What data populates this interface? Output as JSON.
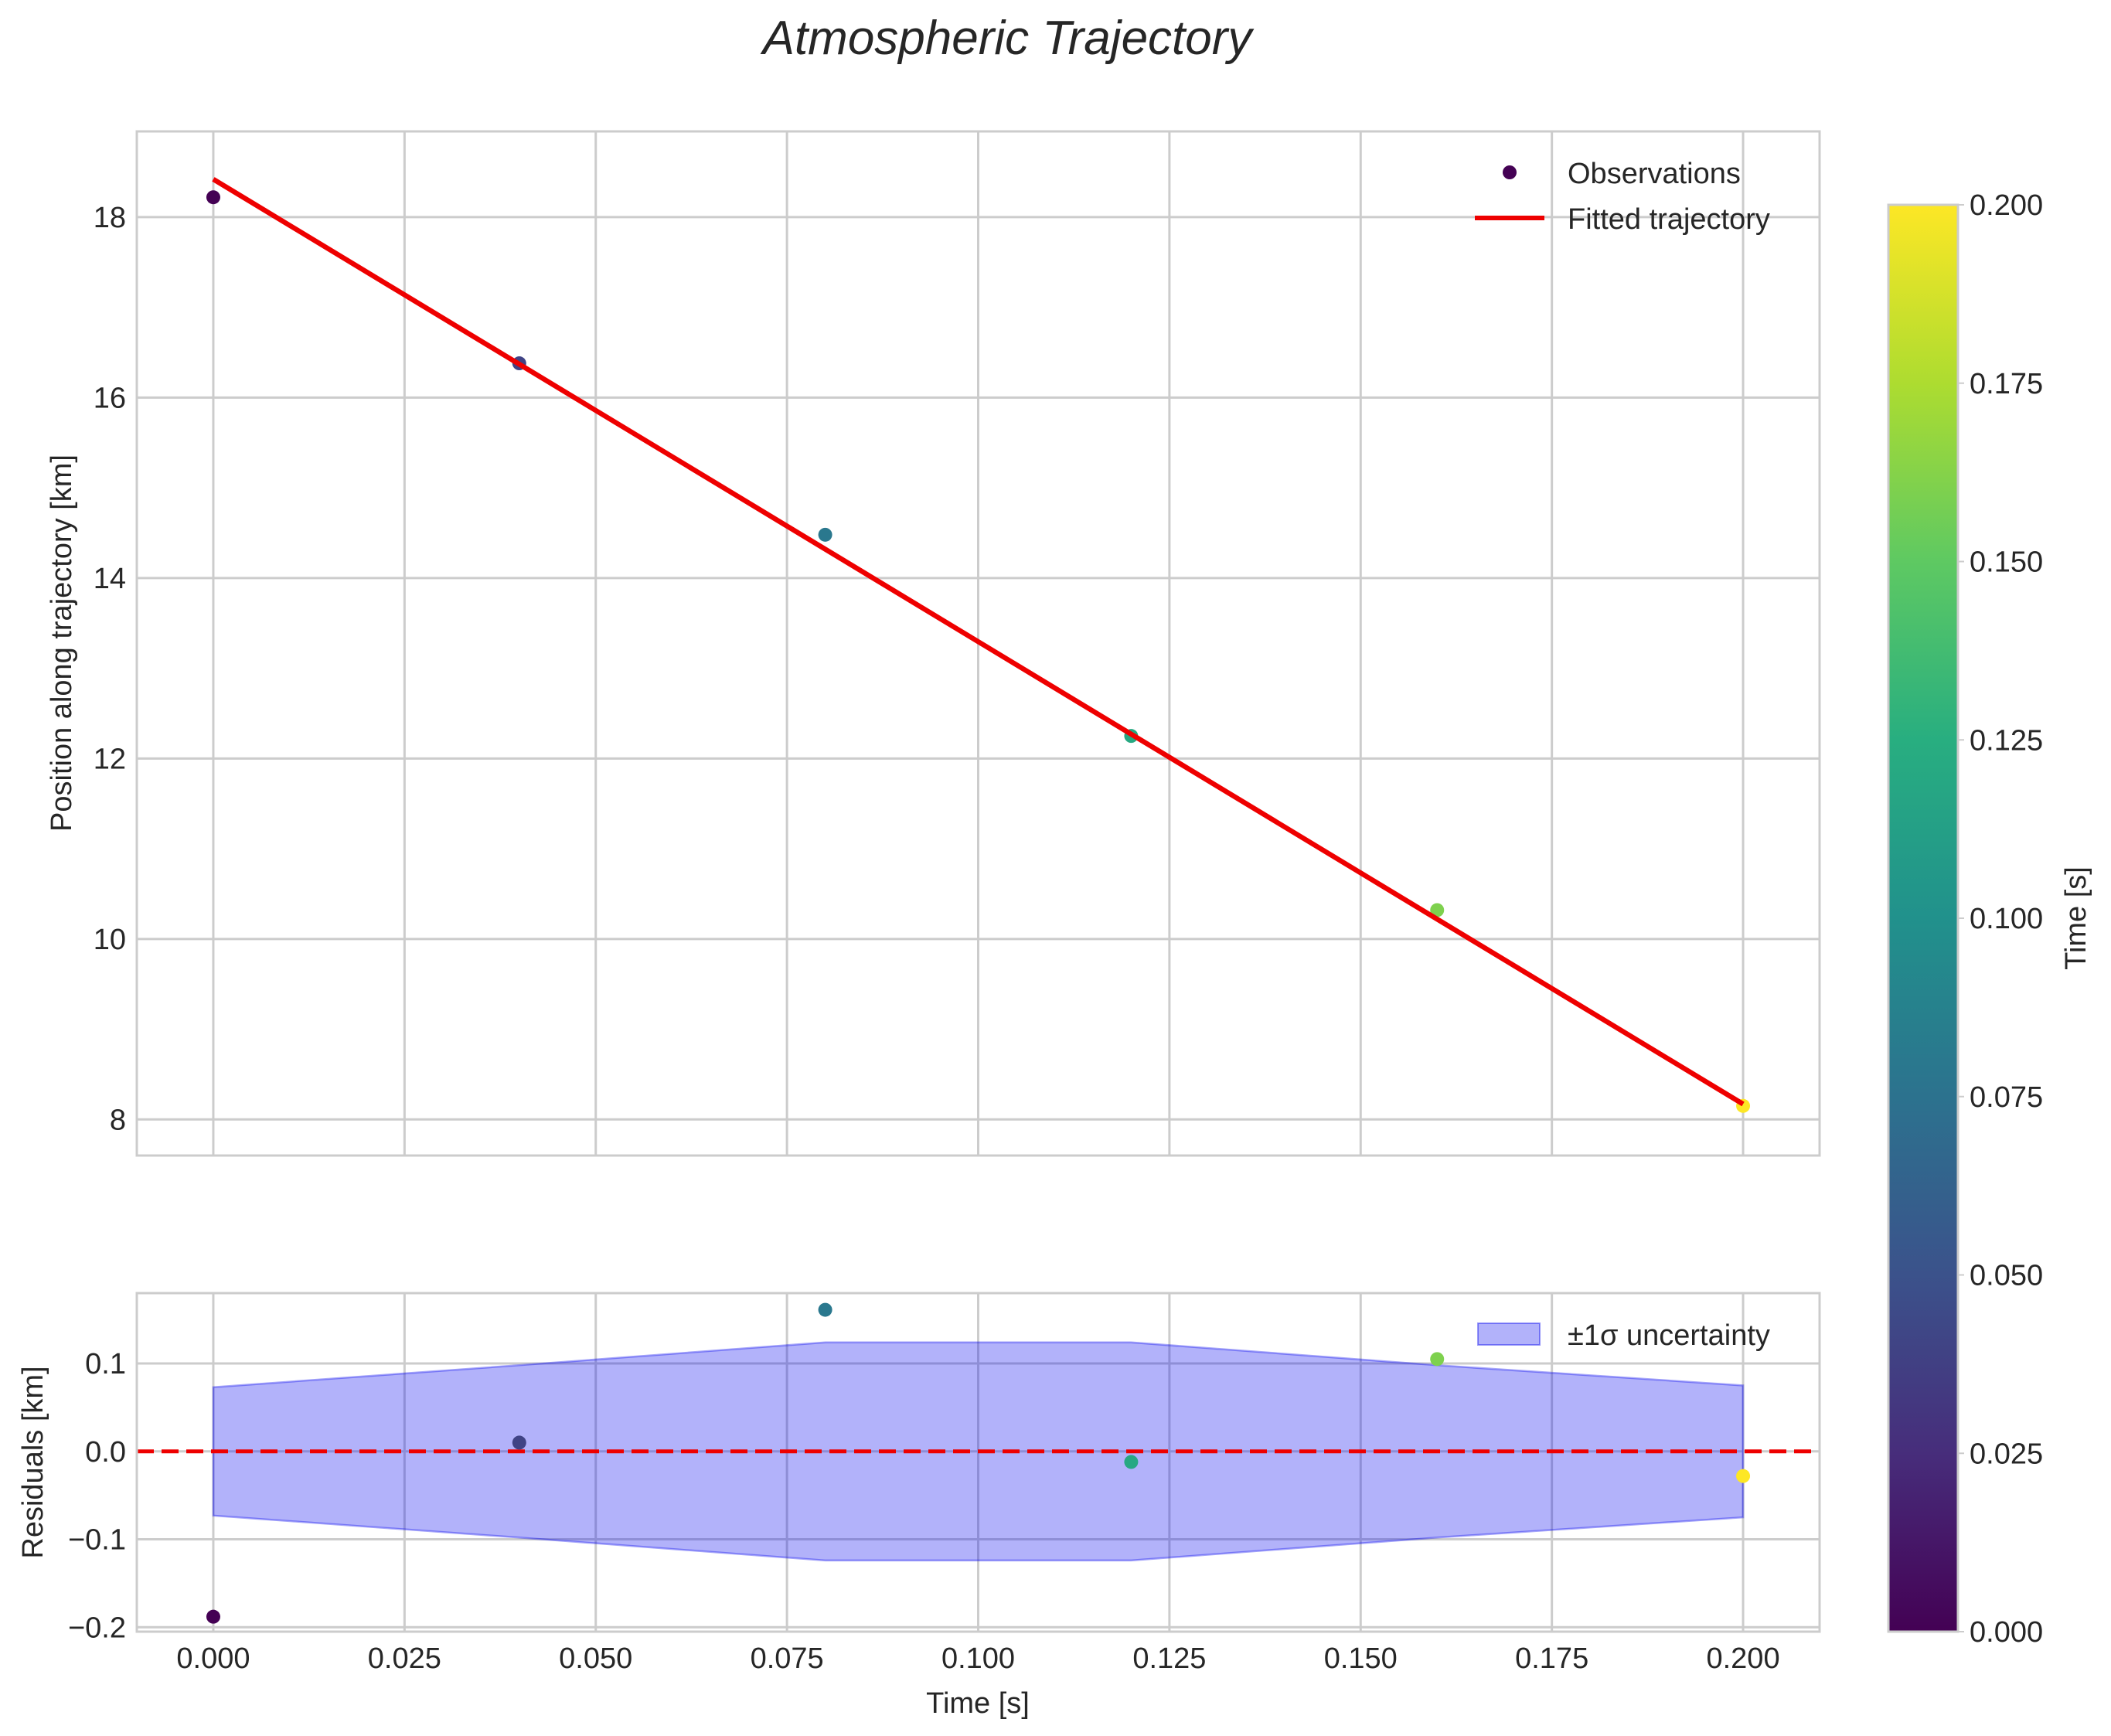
{
  "chart_data": [
    {
      "id": "trajectory",
      "type": "scatter+line",
      "title": "Atmospheric Trajectory",
      "xlabel": "",
      "ylabel": "Position along trajectory [km]",
      "xlim": [
        -0.01,
        0.21
      ],
      "ylim": [
        7.6,
        18.95
      ],
      "xticks": [
        0.0,
        0.025,
        0.05,
        0.075,
        0.1,
        0.125,
        0.15,
        0.175,
        0.2
      ],
      "yticks": [
        8,
        10,
        12,
        14,
        16,
        18
      ],
      "ytick_labels": [
        "8",
        "10",
        "12",
        "14",
        "16",
        "18"
      ],
      "grid": true,
      "legend": "top-right",
      "series": [
        {
          "name": "Observations",
          "kind": "scatter",
          "x": [
            0.0,
            0.04,
            0.08,
            0.12,
            0.16,
            0.2
          ],
          "y": [
            18.22,
            16.38,
            14.48,
            12.25,
            10.32,
            8.15
          ],
          "color_by": "x"
        },
        {
          "name": "Fitted trajectory",
          "kind": "line",
          "color": "#ee0000",
          "x": [
            0.0,
            0.2
          ],
          "y": [
            18.42,
            8.17
          ]
        }
      ]
    },
    {
      "id": "residuals",
      "type": "scatter+area",
      "xlabel": "Time [s]",
      "ylabel": "Residuals [km]",
      "xlim": [
        -0.01,
        0.21
      ],
      "ylim": [
        -0.205,
        0.18
      ],
      "xticks": [
        0.0,
        0.025,
        0.05,
        0.075,
        0.1,
        0.125,
        0.15,
        0.175,
        0.2
      ],
      "xtick_labels": [
        "0.000",
        "0.025",
        "0.050",
        "0.075",
        "0.100",
        "0.125",
        "0.150",
        "0.175",
        "0.200"
      ],
      "yticks": [
        -0.2,
        -0.1,
        0.0,
        0.1
      ],
      "ytick_labels": [
        "−0.2",
        "−0.1",
        "0.0",
        "0.1"
      ],
      "grid": true,
      "legend": "top-right",
      "reference_line": {
        "y": 0,
        "style": "dashed",
        "color": "#ee0000"
      },
      "series": [
        {
          "name": "±1σ uncertainty",
          "kind": "band",
          "color": "#0000ee",
          "x": [
            0.0,
            0.04,
            0.08,
            0.12,
            0.16,
            0.2
          ],
          "upper": [
            0.073,
            0.098,
            0.124,
            0.124,
            0.098,
            0.075
          ],
          "lower": [
            -0.073,
            -0.098,
            -0.124,
            -0.124,
            -0.098,
            -0.075
          ]
        },
        {
          "name": "Residuals",
          "kind": "scatter",
          "x": [
            0.0,
            0.04,
            0.08,
            0.12,
            0.16,
            0.2
          ],
          "y": [
            -0.188,
            0.01,
            0.161,
            -0.012,
            0.105,
            -0.028
          ],
          "color_by": "x"
        }
      ]
    },
    {
      "id": "colorbar",
      "type": "colorbar",
      "label": "Time [s]",
      "colormap": "viridis",
      "range": [
        0.0,
        0.2
      ],
      "ticks": [
        0.0,
        0.025,
        0.05,
        0.075,
        0.1,
        0.125,
        0.15,
        0.175,
        0.2
      ],
      "tick_labels": [
        "0.000",
        "0.025",
        "0.050",
        "0.075",
        "0.100",
        "0.125",
        "0.150",
        "0.175",
        "0.200"
      ]
    }
  ],
  "colors": {
    "fit_line": "#ee0000",
    "band": "#0000ee",
    "grid": "#cccccc",
    "spine": "#cccccc"
  }
}
